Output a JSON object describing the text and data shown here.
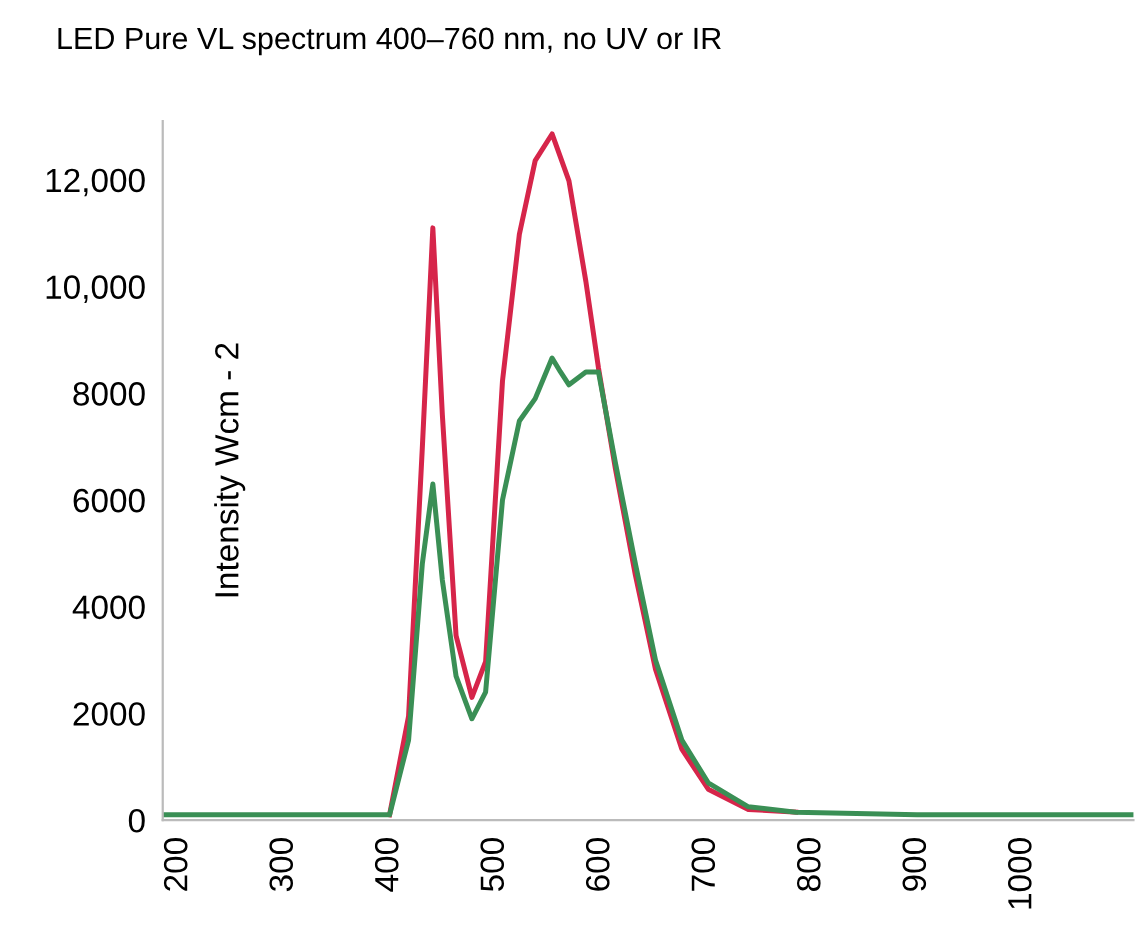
{
  "chart_data": {
    "type": "line",
    "title": "LED Pure VL spectrum 400–760 nm, no UV or IR",
    "ylabel": "Intensity Wcm - 2",
    "series": [
      {
        "color": "#d6254a",
        "x": [
          400,
          418,
          431,
          441,
          450,
          463,
          478,
          491,
          507,
          523,
          538,
          554,
          570,
          586,
          598,
          614,
          633,
          652,
          677,
          702,
          740,
          785
        ],
        "values": [
          100,
          1950,
          6970,
          11100,
          7600,
          3460,
          2300,
          2970,
          8230,
          10980,
          12360,
          12860,
          11980,
          10100,
          8470,
          6590,
          4590,
          2830,
          1330,
          580,
          200,
          150
        ]
      },
      {
        "color": "#3a8f55",
        "x": [
          185,
          300,
          400,
          418,
          431,
          441,
          450,
          463,
          478,
          491,
          507,
          523,
          538,
          554,
          562,
          570,
          586,
          598,
          614,
          633,
          652,
          677,
          702,
          740,
          785,
          900,
          1105
        ],
        "values": [
          100,
          100,
          100,
          1500,
          4800,
          6300,
          4500,
          2700,
          1900,
          2400,
          6000,
          7480,
          7900,
          8660,
          8400,
          8160,
          8400,
          8400,
          6700,
          4800,
          3000,
          1500,
          700,
          250,
          150,
          100,
          100
        ]
      }
    ],
    "xlim": [
      185,
      1105
    ],
    "ylim": [
      0,
      13100
    ],
    "xticks": [
      200,
      300,
      400,
      500,
      600,
      700,
      800,
      900,
      1000
    ],
    "yticks": [
      0,
      2000,
      4000,
      6000,
      8000,
      {
        "value": 10000,
        "label": "10,000"
      },
      {
        "value": 12000,
        "label": "12,000"
      }
    ],
    "grid": false,
    "legend": false
  }
}
